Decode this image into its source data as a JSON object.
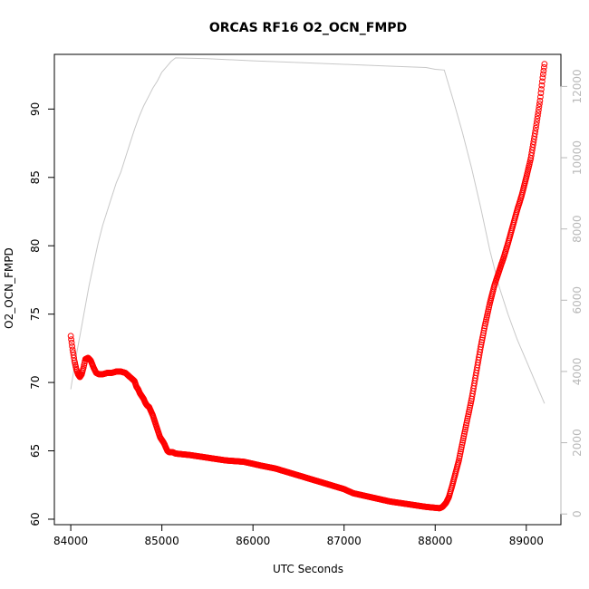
{
  "chart_data": {
    "type": "scatter",
    "title": "ORCAS RF16 O2_OCN_FMPD",
    "xlabel": "UTC Seconds",
    "ylabel": "O2_OCN_FMPD",
    "xlim": [
      83820,
      89380
    ],
    "ylim": [
      59.6,
      94.0
    ],
    "y2lim": [
      -300,
      12900
    ],
    "xticks": [
      "84000",
      "85000",
      "86000",
      "87000",
      "88000",
      "89000"
    ],
    "yticks": [
      "60",
      "65",
      "70",
      "75",
      "80",
      "85",
      "90"
    ],
    "y2ticks": [
      "0",
      "2000",
      "4000",
      "6000",
      "8000",
      "10000",
      "12000"
    ],
    "colors": {
      "primary": "#ff0000",
      "secondary": "#c8c8c8",
      "axis": "#000000"
    },
    "series": [
      {
        "type": "scatter",
        "marker": "open-circle",
        "color": "#ff0000",
        "axis": "left",
        "x": [
          84000,
          84020,
          84040,
          84060,
          84080,
          84100,
          84120,
          84140,
          84160,
          84190,
          84220,
          84250,
          84280,
          84310,
          84350,
          84400,
          84450,
          84500,
          84550,
          84600,
          84650,
          84700,
          84720,
          84740,
          84760,
          84780,
          84800,
          84820,
          84840,
          84860,
          84880,
          84900,
          84920,
          84940,
          84960,
          84980,
          85000,
          85020,
          85040,
          85060,
          85080,
          85100,
          85120,
          85150,
          85300,
          85500,
          85700,
          85900,
          86100,
          86250,
          86500,
          86750,
          87000,
          87100,
          87300,
          87500,
          87700,
          87900,
          88050,
          88080,
          88120,
          88150,
          88180,
          88220,
          88260,
          88300,
          88350,
          88400,
          88450,
          88500,
          88550,
          88600,
          88650,
          88700,
          88750,
          88800,
          88850,
          88900,
          88950,
          89000,
          89050,
          89100,
          89150,
          89180,
          89200
        ],
        "y": [
          73.4,
          72.4,
          71.6,
          71.0,
          70.6,
          70.4,
          70.6,
          71.1,
          71.7,
          71.8,
          71.6,
          71.1,
          70.7,
          70.6,
          70.6,
          70.7,
          70.7,
          70.8,
          70.8,
          70.7,
          70.4,
          70.1,
          69.7,
          69.5,
          69.2,
          69.0,
          68.8,
          68.5,
          68.3,
          68.2,
          67.9,
          67.6,
          67.2,
          66.8,
          66.4,
          66.0,
          65.8,
          65.6,
          65.3,
          65.0,
          64.9,
          64.9,
          64.9,
          64.8,
          64.7,
          64.5,
          64.3,
          64.2,
          63.9,
          63.7,
          63.2,
          62.7,
          62.2,
          61.9,
          61.6,
          61.3,
          61.1,
          60.9,
          60.8,
          60.9,
          61.2,
          61.6,
          62.3,
          63.3,
          64.3,
          65.6,
          67.2,
          68.8,
          70.7,
          72.6,
          74.3,
          75.8,
          77.1,
          78.1,
          79.1,
          80.2,
          81.4,
          82.6,
          83.7,
          85.0,
          86.4,
          88.4,
          90.6,
          92.3,
          93.3
        ]
      },
      {
        "type": "line",
        "color": "#c8c8c8",
        "axis": "right",
        "x": [
          84000,
          84050,
          84100,
          84150,
          84200,
          84250,
          84300,
          84350,
          84400,
          84450,
          84500,
          84550,
          84600,
          84650,
          84700,
          84750,
          84800,
          84850,
          84900,
          84950,
          85000,
          85050,
          85100,
          85150,
          85500,
          86000,
          86500,
          87000,
          87500,
          87900,
          88000,
          88100,
          88200,
          88300,
          88400,
          88500,
          88600,
          88700,
          88800,
          88900,
          89000,
          89100,
          89200
        ],
        "y": [
          3500,
          4300,
          5000,
          5700,
          6400,
          7000,
          7600,
          8100,
          8500,
          8900,
          9300,
          9600,
          10000,
          10400,
          10800,
          11150,
          11450,
          11700,
          11950,
          12150,
          12400,
          12550,
          12700,
          12800,
          12780,
          12720,
          12670,
          12620,
          12570,
          12530,
          12480,
          12460,
          11600,
          10700,
          9700,
          8600,
          7400,
          6400,
          5600,
          4900,
          4300,
          3700,
          3100
        ]
      }
    ]
  }
}
